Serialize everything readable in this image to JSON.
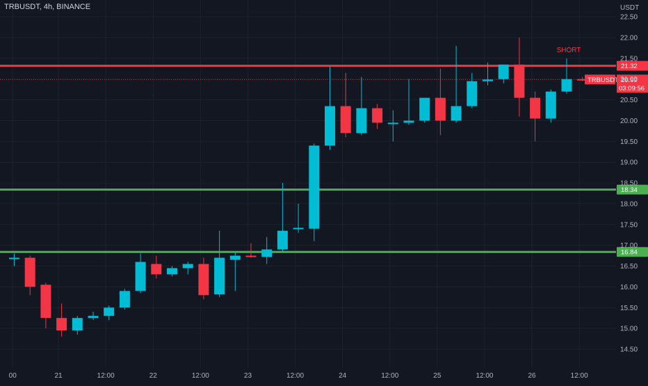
{
  "header": {
    "symbol_line": "TRBUSDT, 4h, BINANCE"
  },
  "chart_data": {
    "type": "candlestick",
    "title": "TRBUSDT, 4h, BINANCE",
    "currency": "USDT",
    "ylim": [
      14.2,
      22.6
    ],
    "y_ticks": [
      "14.50",
      "15.00",
      "15.50",
      "16.00",
      "16.50",
      "17.00",
      "17.50",
      "18.00",
      "18.50",
      "19.00",
      "19.50",
      "20.00",
      "20.50",
      "21.00",
      "21.50",
      "22.00",
      "22.50"
    ],
    "x_ticks": [
      {
        "label": "00",
        "i": -0.1
      },
      {
        "label": "21",
        "i": 2.8
      },
      {
        "label": "12:00",
        "i": 5.8
      },
      {
        "label": "22",
        "i": 8.8
      },
      {
        "label": "12:00",
        "i": 11.8
      },
      {
        "label": "23",
        "i": 14.8
      },
      {
        "label": "12:00",
        "i": 17.8
      },
      {
        "label": "24",
        "i": 20.8
      },
      {
        "label": "12:00",
        "i": 23.8
      },
      {
        "label": "25",
        "i": 26.8
      },
      {
        "label": "12:00",
        "i": 29.8
      },
      {
        "label": "26",
        "i": 32.8
      },
      {
        "label": "12:00",
        "i": 35.8
      }
    ],
    "candles": [
      {
        "o": 16.7,
        "h": 16.8,
        "l": 16.5,
        "c": 16.7
      },
      {
        "o": 16.7,
        "h": 16.75,
        "l": 15.8,
        "c": 16.0
      },
      {
        "o": 16.05,
        "h": 16.1,
        "l": 15.0,
        "c": 15.25
      },
      {
        "o": 15.25,
        "h": 15.6,
        "l": 14.8,
        "c": 14.95
      },
      {
        "o": 14.95,
        "h": 15.3,
        "l": 14.85,
        "c": 15.25
      },
      {
        "o": 15.25,
        "h": 15.4,
        "l": 15.2,
        "c": 15.3
      },
      {
        "o": 15.3,
        "h": 15.55,
        "l": 15.2,
        "c": 15.5
      },
      {
        "o": 15.5,
        "h": 15.95,
        "l": 15.45,
        "c": 15.9
      },
      {
        "o": 15.9,
        "h": 16.8,
        "l": 15.85,
        "c": 16.6
      },
      {
        "o": 16.55,
        "h": 16.75,
        "l": 16.2,
        "c": 16.3
      },
      {
        "o": 16.3,
        "h": 16.5,
        "l": 16.25,
        "c": 16.45
      },
      {
        "o": 16.45,
        "h": 16.6,
        "l": 16.3,
        "c": 16.55
      },
      {
        "o": 16.55,
        "h": 16.7,
        "l": 15.7,
        "c": 15.8
      },
      {
        "o": 15.82,
        "h": 17.35,
        "l": 15.75,
        "c": 16.7
      },
      {
        "o": 16.65,
        "h": 16.85,
        "l": 15.9,
        "c": 16.75
      },
      {
        "o": 16.75,
        "h": 17.05,
        "l": 16.7,
        "c": 16.72
      },
      {
        "o": 16.72,
        "h": 17.2,
        "l": 16.55,
        "c": 16.9
      },
      {
        "o": 16.9,
        "h": 18.5,
        "l": 16.85,
        "c": 17.35
      },
      {
        "o": 17.4,
        "h": 18.0,
        "l": 17.3,
        "c": 17.42
      },
      {
        "o": 17.4,
        "h": 19.45,
        "l": 17.1,
        "c": 19.4
      },
      {
        "o": 19.4,
        "h": 21.3,
        "l": 19.3,
        "c": 20.35
      },
      {
        "o": 20.35,
        "h": 21.15,
        "l": 19.6,
        "c": 19.7
      },
      {
        "o": 19.7,
        "h": 21.05,
        "l": 19.65,
        "c": 20.3
      },
      {
        "o": 20.3,
        "h": 20.4,
        "l": 19.8,
        "c": 19.95
      },
      {
        "o": 19.95,
        "h": 20.25,
        "l": 19.5,
        "c": 19.95
      },
      {
        "o": 19.95,
        "h": 21.0,
        "l": 19.9,
        "c": 20.0
      },
      {
        "o": 20.0,
        "h": 20.55,
        "l": 19.95,
        "c": 20.55
      },
      {
        "o": 20.55,
        "h": 21.25,
        "l": 19.65,
        "c": 20.0
      },
      {
        "o": 20.0,
        "h": 21.8,
        "l": 19.95,
        "c": 20.35
      },
      {
        "o": 20.35,
        "h": 21.15,
        "l": 20.3,
        "c": 20.95
      },
      {
        "o": 20.95,
        "h": 21.4,
        "l": 20.85,
        "c": 20.99
      },
      {
        "o": 21.0,
        "h": 21.35,
        "l": 20.9,
        "c": 21.35
      },
      {
        "o": 21.35,
        "h": 22.0,
        "l": 20.1,
        "c": 20.55
      },
      {
        "o": 20.55,
        "h": 20.7,
        "l": 19.5,
        "c": 20.05
      },
      {
        "o": 20.05,
        "h": 20.75,
        "l": 19.95,
        "c": 20.7
      },
      {
        "o": 20.7,
        "h": 21.5,
        "l": 20.65,
        "c": 21.0
      },
      {
        "o": 21.0,
        "h": 21.05,
        "l": 20.95,
        "c": 20.99
      }
    ],
    "levels": [
      {
        "value": 21.32,
        "label": "21.32",
        "color": "#f23645"
      },
      {
        "value": 18.34,
        "label": "18.34",
        "color": "#4caf50"
      },
      {
        "value": 16.84,
        "label": "16.84",
        "color": "#4caf50"
      }
    ],
    "last_price": {
      "value": 20.99,
      "label": "20.99",
      "ticker": "TRBUSDT",
      "countdown": "03:09:56",
      "color": "#f23645"
    },
    "annotations": [
      {
        "text": "SHORT",
        "i": 35,
        "value": 21.7,
        "color": "#f23645"
      }
    ],
    "colors": {
      "up": "#00bcd4",
      "down": "#f23645",
      "background": "#131722",
      "grid": "#1e222d",
      "axis_text": "#b2b5be"
    },
    "grid": true
  }
}
